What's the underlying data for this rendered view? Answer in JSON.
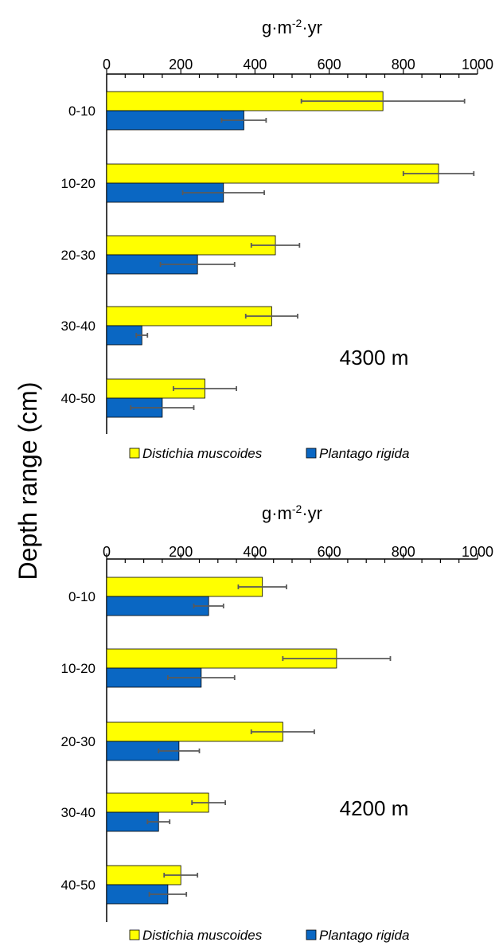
{
  "ylabel": "Depth range (cm)",
  "colors": {
    "Distichia muscoides": "#ffff00",
    "Plantago rigida": "#0a67c3",
    "errorbar": "#5a5a5a"
  },
  "chart_data": [
    {
      "type": "bar",
      "orientation": "horizontal",
      "xlabel_main": "g·m",
      "xlabel_sup": "-2",
      "xlabel_tail": "·yr",
      "site_label": "4300 m",
      "ylabel": "Depth range (cm)",
      "xlim": [
        0,
        1000
      ],
      "xticks": [
        "0",
        "200",
        "400",
        "600",
        "800",
        "1000"
      ],
      "categories": [
        "0-10",
        "10-20",
        "20-30",
        "30-40",
        "40-50"
      ],
      "series": [
        {
          "name": "Distichia muscoides",
          "values": [
            745,
            895,
            455,
            445,
            265
          ],
          "errors": [
            220,
            95,
            65,
            70,
            85
          ]
        },
        {
          "name": "Plantago rigida",
          "values": [
            370,
            315,
            245,
            95,
            150
          ],
          "errors": [
            60,
            110,
            100,
            15,
            85
          ]
        }
      ],
      "legend": [
        "Distichia muscoides",
        "Plantago rigida"
      ],
      "legend_position": "bottom"
    },
    {
      "type": "bar",
      "orientation": "horizontal",
      "xlabel_main": "g·m",
      "xlabel_sup": "-2",
      "xlabel_tail": "·yr",
      "site_label": "4200 m",
      "ylabel": "Depth range (cm)",
      "xlim": [
        0,
        1000
      ],
      "xticks": [
        "0",
        "200",
        "400",
        "600",
        "800",
        "1000"
      ],
      "categories": [
        "0-10",
        "10-20",
        "20-30",
        "30-40",
        "40-50"
      ],
      "series": [
        {
          "name": "Distichia muscoides",
          "values": [
            420,
            620,
            475,
            275,
            200
          ],
          "errors": [
            65,
            145,
            85,
            45,
            45
          ]
        },
        {
          "name": "Plantago rigida",
          "values": [
            275,
            255,
            195,
            140,
            165
          ],
          "errors": [
            40,
            90,
            55,
            30,
            50
          ]
        }
      ],
      "legend": [
        "Distichia muscoides",
        "Plantago rigida"
      ],
      "legend_position": "bottom"
    }
  ]
}
